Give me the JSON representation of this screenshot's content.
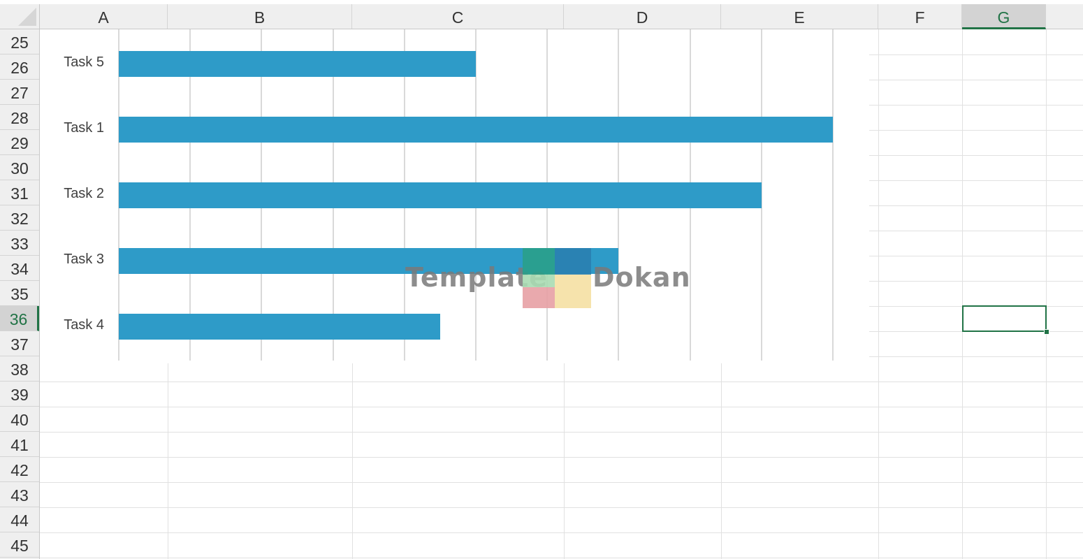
{
  "columns": [
    "A",
    "B",
    "C",
    "D",
    "E",
    "F",
    "G"
  ],
  "selected_column": "G",
  "rows": [
    "25",
    "26",
    "27",
    "28",
    "29",
    "30",
    "31",
    "32",
    "33",
    "34",
    "35",
    "36",
    "37",
    "38",
    "39",
    "40",
    "41",
    "42",
    "43",
    "44",
    "45"
  ],
  "selected_row": "36",
  "colors": {
    "bar": "#2e9bc8",
    "selection": "#217346"
  },
  "chart_data": {
    "type": "bar",
    "orientation": "horizontal",
    "categories": [
      "Task 5",
      "Task 1",
      "Task 2",
      "Task 3",
      "Task 4"
    ],
    "values": [
      5,
      10,
      9,
      7,
      4.5
    ],
    "xlim": [
      0,
      10
    ],
    "gridlines": [
      0,
      1,
      2,
      3,
      4,
      5,
      6,
      7,
      8,
      9,
      10
    ],
    "grid": true,
    "title": "",
    "xlabel": "",
    "ylabel": ""
  },
  "watermark": {
    "left_text": "Template",
    "right_text": "Dokan",
    "colors": [
      "#2aa08a",
      "#2a7fb0",
      "#a8dcb3",
      "#e7a0a4",
      "#f5e0a3"
    ]
  }
}
